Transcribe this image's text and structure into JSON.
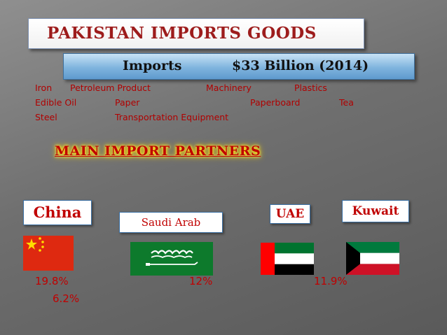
{
  "slide": {
    "title": "PAKISTAN IMPORTS GOODS",
    "imports": {
      "label": "Imports",
      "value": "$33 Billion (2014)"
    },
    "goods": [
      "Iron",
      "Petroleum Product",
      "Machinery",
      "Plastics",
      "Edible Oil",
      "Paper",
      "Paperboard",
      "Tea",
      "Steel",
      "Transportation Equipment"
    ],
    "partners_title": "MAIN IMPORT PARTNERS",
    "partners": [
      {
        "name": "China",
        "share": "19.8%"
      },
      {
        "name": "Saudi Arab",
        "share": "12%"
      },
      {
        "name": "UAE",
        "share": "11.9%"
      },
      {
        "name": "Kuwait",
        "share": "6.2%"
      }
    ]
  },
  "colors": {
    "title_red": "#9d1c1c",
    "text_red": "#c00000",
    "bar_blue": "#7fb4de",
    "glow_yellow": "#ffe100"
  }
}
